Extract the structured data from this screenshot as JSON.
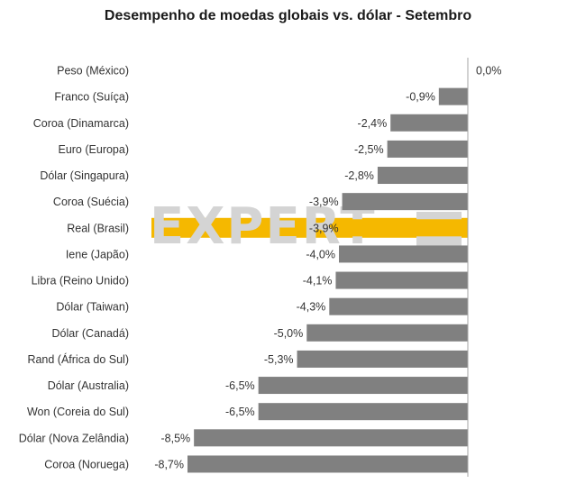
{
  "chart_data": {
    "type": "bar",
    "orientation": "horizontal",
    "title": "Desempenho de moedas globais vs. dólar - Setembro",
    "categories": [
      "Peso (México)",
      "Franco (Suíça)",
      "Coroa (Dinamarca)",
      "Euro (Europa)",
      "Dólar (Singapura)",
      "Coroa (Suécia)",
      "Real (Brasil)",
      "Iene (Japão)",
      "Libra (Reino Unido)",
      "Dólar (Taiwan)",
      "Dólar (Canadá)",
      "Rand (África do Sul)",
      "Dólar (Australia)",
      "Won (Coreia do Sul)",
      "Dólar (Nova Zelândia)",
      "Coroa (Noruega)"
    ],
    "values": [
      0.0,
      -0.9,
      -2.4,
      -2.5,
      -2.8,
      -3.9,
      -3.9,
      -4.0,
      -4.1,
      -4.3,
      -5.0,
      -5.3,
      -6.5,
      -6.5,
      -8.5,
      -8.7
    ],
    "value_labels": [
      "0,0%",
      "-0,9%",
      "-2,4%",
      "-2,5%",
      "-2,8%",
      "-3,9%",
      "-3,9%",
      "-4,0%",
      "-4,1%",
      "-4,3%",
      "-5,0%",
      "-5,3%",
      "-6,5%",
      "-6,5%",
      "-8,5%",
      "-8,7%"
    ],
    "highlight_category": "Real (Brasil)",
    "xlim": [
      -8.7,
      0
    ],
    "grid": false,
    "legend": "none",
    "colors": {
      "bar": "#808080",
      "highlight": "#f5b800",
      "axis": "#a6a6a6",
      "text": "#333333"
    }
  },
  "watermark": {
    "text": "EXPERT",
    "badge": "XP"
  }
}
